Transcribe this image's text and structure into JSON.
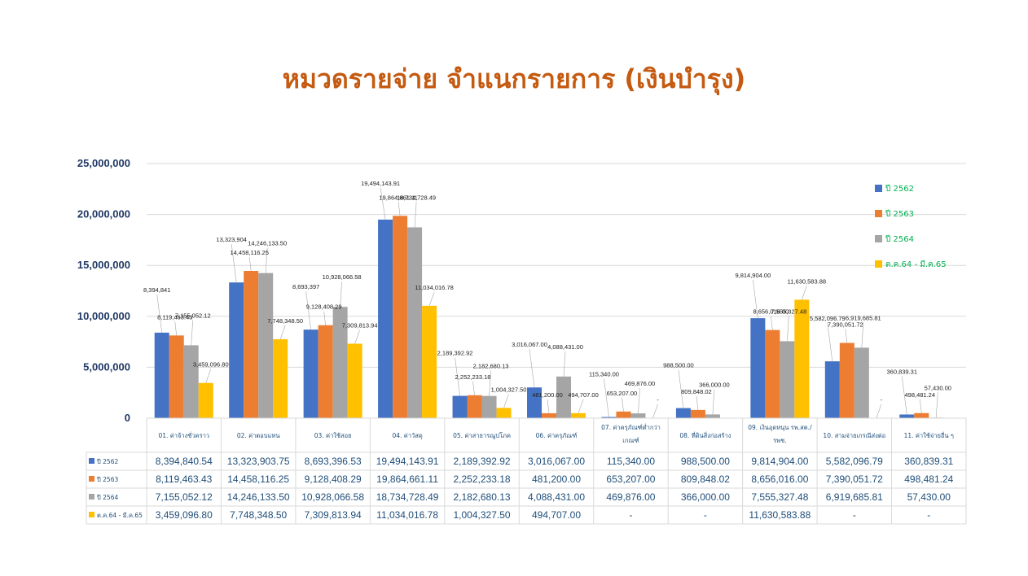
{
  "title": "หมวดรายจ่าย จำแนกรายการ (เงินบำรุง)",
  "colors": {
    "p2562": "#4472c4",
    "p2563": "#ed7d31",
    "p2564": "#a5a5a5",
    "p2565": "#ffc000"
  },
  "chart_data": {
    "type": "bar",
    "title": "หมวดรายจ่าย จำแนกรายการ (เงินบำรุง)",
    "ylim": [
      0,
      25000000
    ],
    "y_ticks": [
      "0",
      "5,000,000",
      "10,000,000",
      "15,000,000",
      "20,000,000",
      "25,000,000"
    ],
    "y_tick_values": [
      0,
      5000000,
      10000000,
      15000000,
      20000000,
      25000000
    ],
    "grid": true,
    "legend_position": "right",
    "categories": [
      [
        "01. ค่าจ้างชั่วคราว"
      ],
      [
        "02. ค่าตอบแทน"
      ],
      [
        "03. ค่าใช้สอย"
      ],
      [
        "04. ค่าวัสดุ"
      ],
      [
        "05. ค่าสาธารณูปโภค"
      ],
      [
        "06. ค่าครุภัณฑ์"
      ],
      [
        "07. ค่าครุภัณฑ์ต่ำกว่า",
        "เกณฑ์"
      ],
      [
        "08. ที่ดินสิ่งก่อสร้าง"
      ],
      [
        "09. เงินอุดหนุน รพ.สต./",
        "รพช."
      ],
      [
        "10. สามจ่ายเกรณีส่งต่อ"
      ],
      [
        "11. ค่าใช้จ่ายอื่น ๆ"
      ]
    ],
    "series": [
      {
        "name": "ปี 2562",
        "legend_label": "ปี 2562",
        "values": [
          8394840.54,
          13323903.75,
          8693396.53,
          19494143.91,
          2189392.92,
          3016067.0,
          115340.0,
          988500.0,
          9814904.0,
          5582096.79,
          360839.31
        ],
        "table": [
          "8,394,840.54",
          "13,323,903.75",
          "8,693,396.53",
          "19,494,143.91",
          "2,189,392.92",
          "3,016,067.00",
          "115,340.00",
          "988,500.00",
          "9,814,904.00",
          "5,582,096.79",
          "360,839.31"
        ],
        "labels": [
          "8,394,841",
          "13,323,904",
          "8,693,397",
          "19,494,143.91",
          "2,189,392.92",
          "3,016,067.00",
          "115,340.00",
          "988,500.00",
          "9,814,904.00",
          "5,582,096.79",
          "360,839.31"
        ]
      },
      {
        "name": "ปี 2563",
        "legend_label": "ปี 2563",
        "values": [
          8119463.43,
          14458116.25,
          9128408.29,
          19864661.11,
          2252233.18,
          481200.0,
          653207.0,
          809848.02,
          8656016.0,
          7390051.72,
          498481.24
        ],
        "table": [
          "8,119,463.43",
          "14,458,116.25",
          "9,128,408.29",
          "19,864,661.11",
          "2,252,233.18",
          "481,200.00",
          "653,207.00",
          "809,848.02",
          "8,656,016.00",
          "7,390,051.72",
          "498,481.24"
        ],
        "labels": [
          "8,119,463.43",
          "14,458,116.25",
          "9,128,408.29",
          "19,864,661.11",
          "2,252,233.18",
          "481,200.00",
          "653,207.00",
          "809,848.02",
          "8,656,016.00",
          "7,390,051.72",
          "498,481.24"
        ]
      },
      {
        "name": "ปี 2564",
        "legend_label": "ปี 2564",
        "values": [
          7155052.12,
          14246133.5,
          10928066.58,
          18734728.49,
          2182680.13,
          4088431.0,
          469876.0,
          366000.0,
          7555327.48,
          6919685.81,
          57430.0
        ],
        "table": [
          "7,155,052.12",
          "14,246,133.50",
          "10,928,066.58",
          "18,734,728.49",
          "2,182,680.13",
          "4,088,431.00",
          "469,876.00",
          "366,000.00",
          "7,555,327.48",
          "6,919,685.81",
          "57,430.00"
        ],
        "labels": [
          "7,155,052.12",
          "14,246,133.50",
          "10,928,066.58",
          "18,734,728.49",
          "2,182,680.13",
          "4,088,431.00",
          "469,876.00",
          "366,000.00",
          "7,555,327.48",
          "6,919,685.81",
          "57,430.00"
        ]
      },
      {
        "name": "ต.ค.64 - มี.ค.65",
        "legend_label": "ต.ค.64 - มี.ค.65",
        "values": [
          3459096.8,
          7748348.5,
          7309813.94,
          11034016.78,
          1004327.5,
          494707.0,
          null,
          null,
          11630583.88,
          null,
          null
        ],
        "table": [
          "3,459,096.80",
          "7,748,348.50",
          "7,309,813.94",
          "11,034,016.78",
          "1,004,327.50",
          "494,707.00",
          "-",
          "-",
          "11,630,583.88",
          "-",
          "-"
        ],
        "labels": [
          "3,459,096.80",
          "7,748,348.50",
          "7,309,813.94",
          "11,034,016.78",
          "1,004,327.50",
          "494,707.00",
          "-",
          "",
          "11,630,583.88",
          "-",
          ""
        ]
      }
    ]
  }
}
